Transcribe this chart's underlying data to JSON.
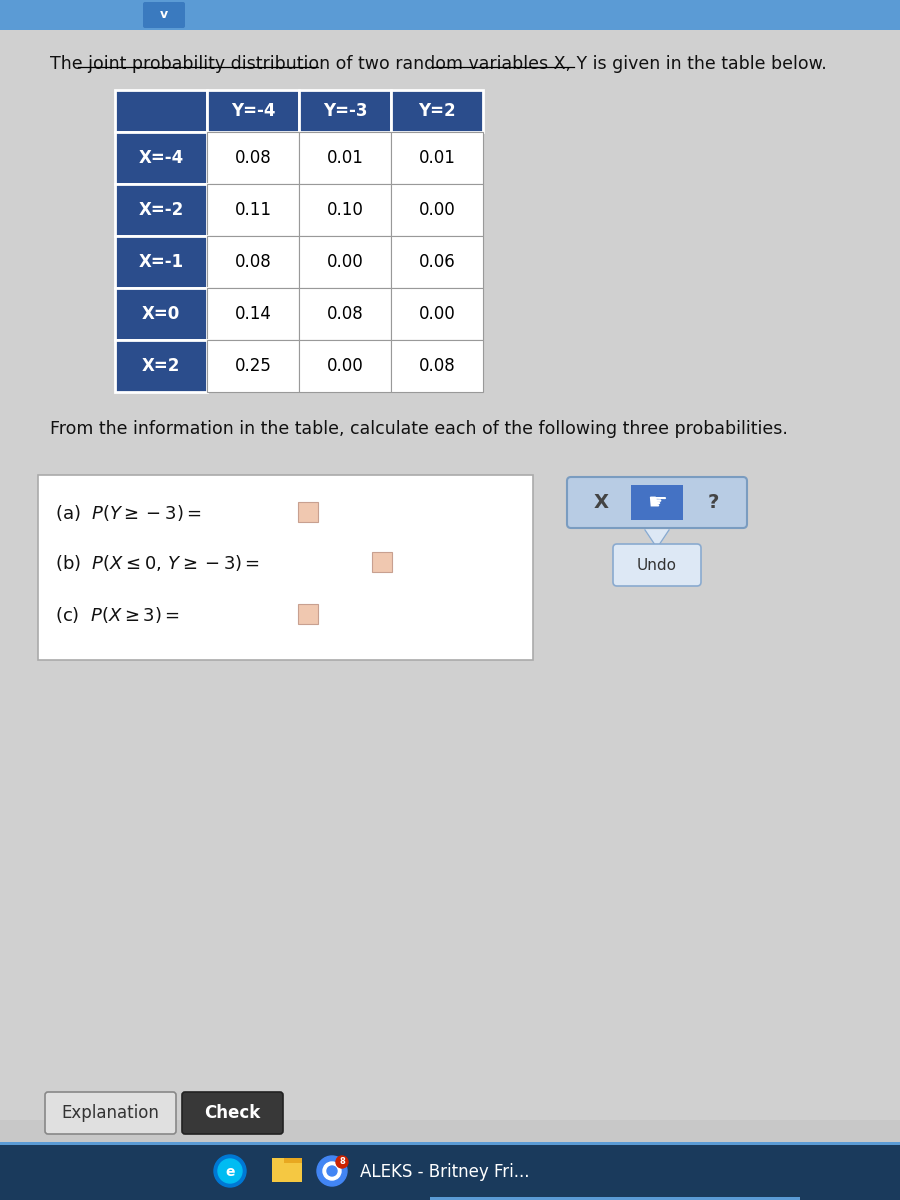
{
  "title_text": "The joint probability distribution of two random variables X, Y is given in the table below.",
  "col_headers": [
    "Y=-4",
    "Y=-3",
    "Y=2"
  ],
  "row_headers": [
    "X=-4",
    "X=-2",
    "X=-1",
    "X=0",
    "X=2"
  ],
  "table_data": [
    [
      0.08,
      0.01,
      0.01
    ],
    [
      0.11,
      0.1,
      0.0
    ],
    [
      0.08,
      0.0,
      0.06
    ],
    [
      0.14,
      0.08,
      0.0
    ],
    [
      0.25,
      0.0,
      0.08
    ]
  ],
  "header_bg": "#2b4d8c",
  "header_text_color": "#ffffff",
  "cell_bg": "#ffffff",
  "cell_text_color": "#000000",
  "bg_color": "#c8c8c8",
  "content_bg": "#d0d0d0",
  "below_table_text": "From the information in the table, calculate each of the following three probabilities.",
  "question_box_bg": "#ffffff",
  "question_box_border": "#aaaaaa",
  "taskbar_color": "#1a3a5c",
  "taskbar_text": "ALEKS - Britney Fri...",
  "explanation_button": "Explanation",
  "check_button": "Check",
  "undo_button": "Undo",
  "input_box_color": "#f0c8b0",
  "top_bar_color": "#5b9bd5",
  "top_bar_dark": "#3a7abf",
  "btn_bg": "#b8cce4",
  "btn_highlight": "#4472c4"
}
